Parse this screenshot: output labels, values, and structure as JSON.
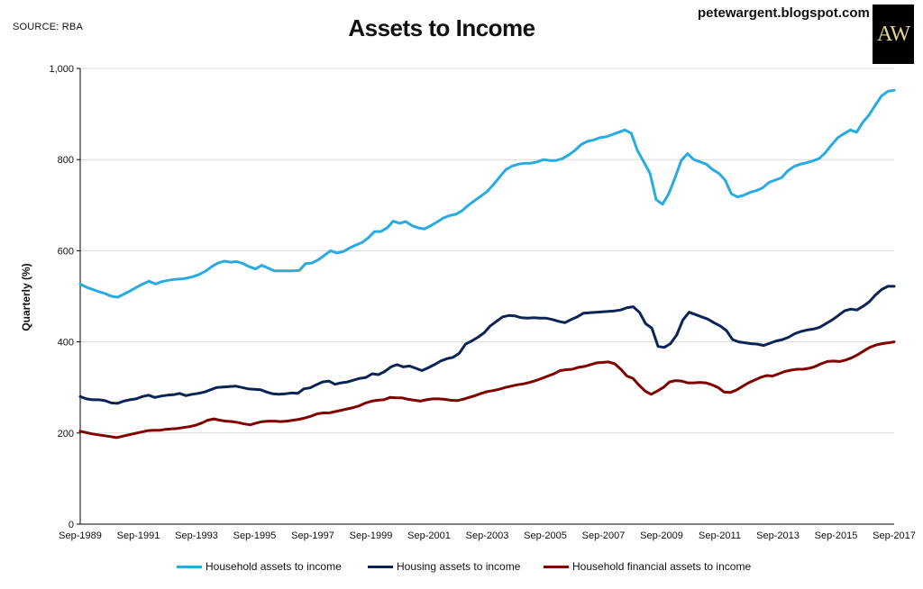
{
  "header": {
    "source": "SOURCE: RBA",
    "blog": "petewargent.blogspot.com",
    "logo_text": "AW"
  },
  "colors": {
    "household": "#29abe2",
    "housing": "#0c2454",
    "financial": "#800000",
    "grid": "#d9d9d9",
    "axis": "#000000"
  },
  "chart_data": {
    "type": "line",
    "title": "Assets to Income",
    "ylabel": "Quarterly (%)",
    "xlabel": "",
    "ylim": [
      0,
      1000
    ],
    "yticks": [
      0,
      200,
      400,
      600,
      800,
      1000
    ],
    "ytick_labels": [
      "0",
      "200",
      "400",
      "600",
      "800",
      "1,000"
    ],
    "xtick_labels": [
      "Sep-1989",
      "Sep-1991",
      "Sep-1993",
      "Sep-1995",
      "Sep-1997",
      "Sep-1999",
      "Sep-2001",
      "Sep-2003",
      "Sep-2005",
      "Sep-2007",
      "Sep-2009",
      "Sep-2011",
      "Sep-2013",
      "Sep-2015",
      "Sep-2017"
    ],
    "x_start": "Sep-1989",
    "x_end": "Sep-2017",
    "frequency": "quarterly",
    "grid": true,
    "legend_position": "bottom",
    "series": [
      {
        "name": "Household assets to income",
        "color_key": "household",
        "values": [
          527,
          520,
          515,
          510,
          506,
          500,
          498,
          505,
          512,
          520,
          527,
          533,
          527,
          532,
          535,
          537,
          538,
          540,
          543,
          548,
          555,
          565,
          573,
          577,
          575,
          576,
          572,
          565,
          560,
          568,
          562,
          556,
          556,
          556,
          556,
          557,
          572,
          573,
          580,
          590,
          600,
          595,
          598,
          606,
          612,
          618,
          628,
          642,
          642,
          650,
          665,
          660,
          664,
          655,
          650,
          648,
          655,
          663,
          672,
          677,
          680,
          688,
          700,
          710,
          720,
          730,
          745,
          762,
          778,
          786,
          790,
          792,
          792,
          795,
          800,
          798,
          798,
          802,
          810,
          820,
          833,
          840,
          843,
          848,
          850,
          855,
          860,
          865,
          858,
          820,
          795,
          770,
          712,
          702,
          725,
          760,
          798,
          813,
          800,
          795,
          790,
          778,
          770,
          755,
          725,
          718,
          722,
          728,
          732,
          738,
          750,
          755,
          760,
          775,
          785,
          790,
          793,
          797,
          802,
          815,
          832,
          848,
          857,
          865,
          860,
          882,
          898,
          920,
          940,
          950,
          952
        ]
      },
      {
        "name": "Housing assets to income",
        "color_key": "housing",
        "values": [
          280,
          275,
          273,
          273,
          271,
          266,
          265,
          270,
          273,
          275,
          280,
          283,
          278,
          281,
          283,
          284,
          287,
          282,
          285,
          287,
          290,
          295,
          300,
          301,
          302,
          303,
          300,
          297,
          296,
          295,
          290,
          286,
          285,
          286,
          288,
          287,
          297,
          299,
          306,
          312,
          314,
          307,
          310,
          312,
          316,
          320,
          322,
          330,
          328,
          335,
          345,
          350,
          345,
          347,
          342,
          337,
          343,
          350,
          358,
          363,
          366,
          375,
          395,
          402,
          410,
          420,
          435,
          445,
          455,
          458,
          457,
          453,
          452,
          453,
          452,
          452,
          449,
          445,
          442,
          449,
          455,
          463,
          464,
          465,
          466,
          467,
          468,
          470,
          475,
          477,
          465,
          440,
          430,
          390,
          388,
          396,
          415,
          448,
          465,
          460,
          455,
          450,
          442,
          435,
          425,
          405,
          400,
          398,
          396,
          395,
          392,
          397,
          402,
          405,
          410,
          418,
          423,
          426,
          428,
          432,
          440,
          448,
          458,
          468,
          472,
          470,
          478,
          488,
          503,
          515,
          522,
          522
        ]
      },
      {
        "name": "Household financial assets to income",
        "color_key": "financial",
        "values": [
          204,
          201,
          198,
          196,
          194,
          192,
          190,
          193,
          196,
          199,
          202,
          205,
          206,
          206,
          208,
          209,
          210,
          212,
          214,
          217,
          222,
          228,
          231,
          228,
          226,
          225,
          223,
          220,
          218,
          222,
          225,
          226,
          226,
          225,
          226,
          228,
          230,
          233,
          237,
          242,
          244,
          244,
          247,
          250,
          253,
          256,
          260,
          266,
          270,
          272,
          273,
          278,
          277,
          277,
          274,
          272,
          270,
          273,
          275,
          275,
          274,
          272,
          271,
          274,
          278,
          282,
          287,
          291,
          293,
          296,
          300,
          303,
          306,
          308,
          311,
          315,
          320,
          325,
          330,
          337,
          339,
          340,
          344,
          346,
          350,
          354,
          355,
          356,
          352,
          340,
          325,
          320,
          305,
          292,
          285,
          292,
          300,
          312,
          315,
          314,
          310,
          310,
          311,
          310,
          306,
          300,
          290,
          289,
          294,
          302,
          310,
          316,
          322,
          326,
          325,
          330,
          335,
          338,
          340,
          340,
          342,
          346,
          352,
          357,
          358,
          357,
          360,
          365,
          372,
          380,
          388,
          393,
          396,
          398,
          400
        ]
      }
    ]
  }
}
